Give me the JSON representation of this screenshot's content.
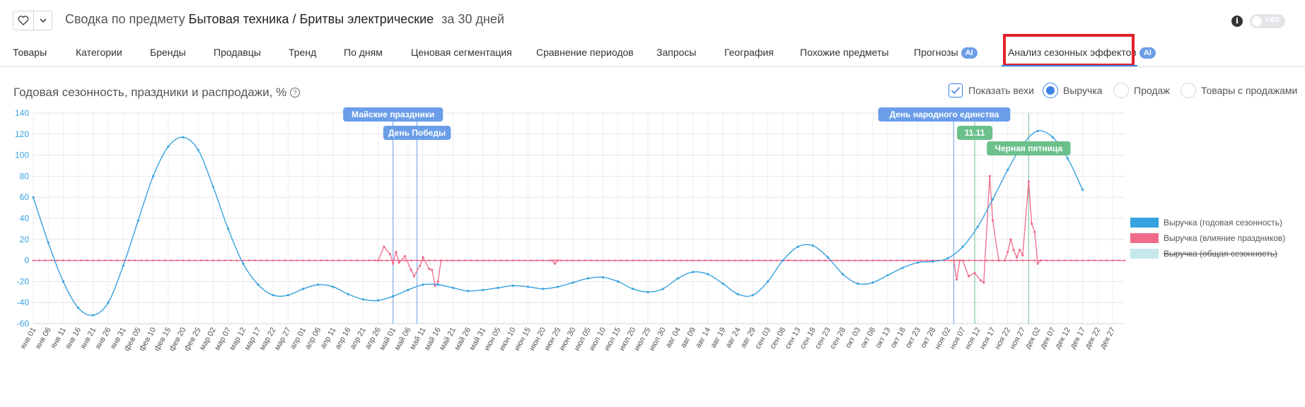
{
  "header": {
    "title_prefix": "Сводка по предмету",
    "subject": "Бытовая техника / Бритвы электрические",
    "period": "за 30 дней",
    "fbs_label": "FBS",
    "info_glyph": "i"
  },
  "tabs": [
    {
      "label": "Товары",
      "ai": false
    },
    {
      "label": "Категории",
      "ai": false
    },
    {
      "label": "Бренды",
      "ai": false
    },
    {
      "label": "Продавцы",
      "ai": false
    },
    {
      "label": "Тренд",
      "ai": false
    },
    {
      "label": "По дням",
      "ai": false
    },
    {
      "label": "Ценовая сегментация",
      "ai": false
    },
    {
      "label": "Сравнение периодов",
      "ai": false
    },
    {
      "label": "Запросы",
      "ai": false
    },
    {
      "label": "География",
      "ai": false
    },
    {
      "label": "Похожие предметы",
      "ai": false
    },
    {
      "label": "Прогнозы",
      "ai": true
    },
    {
      "label": "Анализ сезонных эффектов",
      "ai": true,
      "active": true
    }
  ],
  "ai_badge": "AI",
  "chart_title": "Годовая сезонность, праздники и распродажи, %",
  "help_glyph": "?",
  "controls": {
    "show_milestones": {
      "label": "Показать вехи",
      "checked": true
    },
    "metric_options": [
      {
        "label": "Выручка",
        "selected": true
      },
      {
        "label": "Продаж",
        "selected": false
      },
      {
        "label": "Товары с продажами",
        "selected": false
      }
    ]
  },
  "colors": {
    "seasonality": "#36a2e0",
    "holidays": "#f06b8a",
    "total": "#c6e8ea",
    "milestone_blue": "#6b9ee8",
    "milestone_green": "#6cc08b",
    "accent": "#3d82e6",
    "highlight_box": "#e0212b"
  },
  "chart_data": {
    "type": "line",
    "x_format": "date",
    "year_days": 365,
    "ylim": [
      -60,
      140
    ],
    "y_ticks": [
      -60,
      -40,
      -20,
      0,
      20,
      40,
      60,
      80,
      100,
      120,
      140
    ],
    "x_tick_labels": [
      "янв 01",
      "янв 06",
      "янв 11",
      "янв 16",
      "янв 21",
      "янв 26",
      "янв 31",
      "фев 05",
      "фев 10",
      "фев 15",
      "фев 20",
      "фев 25",
      "мар 02",
      "мар 07",
      "мар 12",
      "мар 17",
      "мар 22",
      "мар 27",
      "апр 01",
      "апр 06",
      "апр 11",
      "апр 16",
      "апр 21",
      "апр 26",
      "май 01",
      "май 06",
      "май 11",
      "май 16",
      "май 21",
      "май 26",
      "май 31",
      "июн 05",
      "июн 10",
      "июн 15",
      "июн 20",
      "июн 25",
      "июн 30",
      "июл 05",
      "июл 10",
      "июл 15",
      "июл 20",
      "июл 25",
      "июл 30",
      "авг 04",
      "авг 09",
      "авг 14",
      "авг 19",
      "авг 24",
      "авг 29",
      "сен 03",
      "сен 08",
      "сен 13",
      "сен 18",
      "сен 23",
      "сен 28",
      "окт 03",
      "окт 08",
      "окт 13",
      "окт 18",
      "окт 23",
      "окт 28",
      "ноя 02",
      "ноя 07",
      "ноя 12",
      "ноя 17",
      "ноя 22",
      "ноя 27",
      "дек 02",
      "дек 07",
      "дек 12",
      "дек 17",
      "дек 22",
      "дек 27"
    ],
    "grid": true,
    "legend_position": "right",
    "series": [
      {
        "name": "Выручка (годовая сезонность)",
        "visible": true,
        "points": [
          [
            "янв 01",
            60
          ],
          [
            "янв 06",
            17
          ],
          [
            "янв 11",
            -20
          ],
          [
            "янв 16",
            -45
          ],
          [
            "янв 21",
            -52
          ],
          [
            "янв 26",
            -40
          ],
          [
            "янв 31",
            -5
          ],
          [
            "фев 05",
            38
          ],
          [
            "фев 10",
            80
          ],
          [
            "фев 15",
            108
          ],
          [
            "фев 20",
            117
          ],
          [
            "фев 25",
            105
          ],
          [
            "мар 02",
            70
          ],
          [
            "мар 07",
            30
          ],
          [
            "мар 12",
            -3
          ],
          [
            "мар 17",
            -23
          ],
          [
            "мар 22",
            -33
          ],
          [
            "мар 27",
            -33
          ],
          [
            "апр 01",
            -27
          ],
          [
            "апр 06",
            -23
          ],
          [
            "апр 11",
            -25
          ],
          [
            "апр 16",
            -32
          ],
          [
            "апр 21",
            -37
          ],
          [
            "апр 26",
            -38
          ],
          [
            "май 01",
            -34
          ],
          [
            "май 06",
            -28
          ],
          [
            "май 11",
            -23
          ],
          [
            "май 16",
            -23
          ],
          [
            "май 21",
            -26
          ],
          [
            "май 26",
            -29
          ],
          [
            "май 31",
            -28
          ],
          [
            "июн 05",
            -26
          ],
          [
            "июн 10",
            -24
          ],
          [
            "июн 15",
            -25
          ],
          [
            "июн 20",
            -27
          ],
          [
            "июн 25",
            -25
          ],
          [
            "июн 30",
            -21
          ],
          [
            "июл 05",
            -17
          ],
          [
            "июл 10",
            -16
          ],
          [
            "июл 15",
            -20
          ],
          [
            "июл 20",
            -27
          ],
          [
            "июл 25",
            -30
          ],
          [
            "июл 30",
            -27
          ],
          [
            "авг 04",
            -17
          ],
          [
            "авг 09",
            -11
          ],
          [
            "авг 14",
            -13
          ],
          [
            "авг 19",
            -22
          ],
          [
            "авг 24",
            -32
          ],
          [
            "авг 29",
            -33
          ],
          [
            "сен 03",
            -20
          ],
          [
            "сен 08",
            0
          ],
          [
            "сен 13",
            13
          ],
          [
            "сен 18",
            14
          ],
          [
            "сен 23",
            3
          ],
          [
            "сен 28",
            -13
          ],
          [
            "окт 03",
            -22
          ],
          [
            "окт 08",
            -21
          ],
          [
            "окт 13",
            -14
          ],
          [
            "окт 18",
            -7
          ],
          [
            "окт 23",
            -2
          ],
          [
            "окт 28",
            -1
          ],
          [
            "ноя 02",
            2
          ],
          [
            "ноя 07",
            13
          ],
          [
            "ноя 12",
            32
          ],
          [
            "ноя 17",
            58
          ],
          [
            "ноя 22",
            86
          ],
          [
            "ноя 27",
            110
          ],
          [
            "дек 02",
            123
          ],
          [
            "дек 07",
            117
          ],
          [
            "дек 12",
            97
          ],
          [
            "дек 17",
            67
          ]
        ]
      },
      {
        "name": "Выручка (влияние праздников)",
        "visible": true,
        "points": [
          [
            "апр 26",
            0
          ],
          [
            "апр 28",
            13
          ],
          [
            "апр 30",
            6
          ],
          [
            "май 01",
            -3
          ],
          [
            "май 02",
            8
          ],
          [
            "май 03",
            -2
          ],
          [
            "май 05",
            4
          ],
          [
            "май 07",
            -9
          ],
          [
            "май 08",
            -15
          ],
          [
            "май 10",
            -5
          ],
          [
            "май 11",
            3
          ],
          [
            "май 13",
            -8
          ],
          [
            "май 14",
            -9
          ],
          [
            "май 15",
            -24
          ],
          [
            "май 16",
            -20
          ],
          [
            "май 17",
            0
          ],
          [
            "июн 23",
            0
          ],
          [
            "июн 24",
            -3
          ],
          [
            "июн 25",
            0
          ],
          [
            "ноя 04",
            0
          ],
          [
            "ноя 05",
            -18
          ],
          [
            "ноя 06",
            0
          ],
          [
            "ноя 07",
            0
          ],
          [
            "ноя 09",
            -15
          ],
          [
            "ноя 11",
            -12
          ],
          [
            "ноя 13",
            -19
          ],
          [
            "ноя 14",
            -21
          ],
          [
            "ноя 16",
            80
          ],
          [
            "ноя 17",
            38
          ],
          [
            "ноя 19",
            0
          ],
          [
            "ноя 21",
            0
          ],
          [
            "ноя 22",
            8
          ],
          [
            "ноя 23",
            20
          ],
          [
            "ноя 24",
            10
          ],
          [
            "ноя 25",
            3
          ],
          [
            "ноя 26",
            10
          ],
          [
            "ноя 27",
            5
          ],
          [
            "ноя 29",
            75
          ],
          [
            "ноя 30",
            35
          ],
          [
            "дек 01",
            27
          ],
          [
            "дек 02",
            -3
          ],
          [
            "дек 03",
            0
          ]
        ]
      },
      {
        "name": "Выручка (общая сезонность)",
        "visible": false,
        "points": []
      }
    ],
    "milestones": [
      {
        "label": "Майские праздники",
        "date": "май 01",
        "color": "blue"
      },
      {
        "label": "День Победы",
        "date": "май 09",
        "color": "blue"
      },
      {
        "label": "День народного единства",
        "date": "ноя 04",
        "color": "blue"
      },
      {
        "label": "11.11",
        "date": "ноя 11",
        "color": "green"
      },
      {
        "label": "Черная пятница",
        "date": "ноя 29",
        "color": "green"
      }
    ]
  }
}
